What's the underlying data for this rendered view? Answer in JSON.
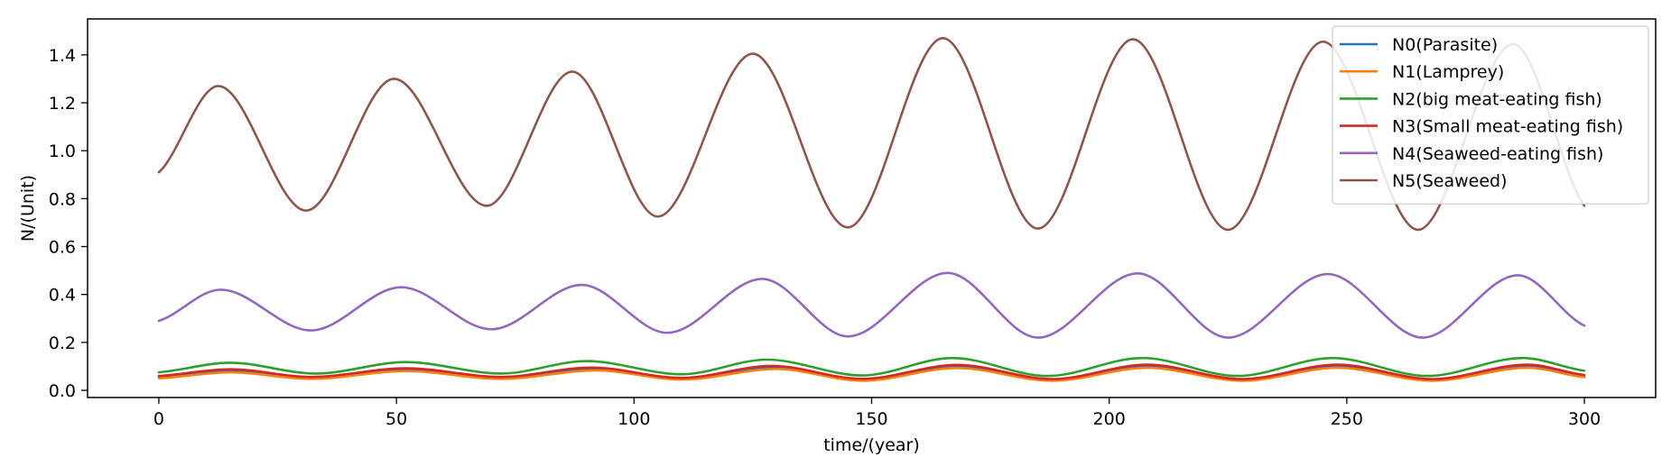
{
  "chart_data": {
    "type": "line",
    "xlabel": "time/(year)",
    "ylabel": "N/(Unit)",
    "xlim": [
      -15,
      315
    ],
    "ylim": [
      -0.03,
      1.55
    ],
    "xticks": [
      0,
      50,
      100,
      150,
      200,
      250,
      300
    ],
    "yticks": [
      0.0,
      0.2,
      0.4,
      0.6,
      0.8,
      1.0,
      1.2,
      1.4
    ],
    "ytick_labels": [
      "0.0",
      "0.2",
      "0.4",
      "0.6",
      "0.8",
      "1.0",
      "1.2",
      "1.4"
    ],
    "grid": false,
    "legend_position": "top-right",
    "series": [
      {
        "name": "N0(Parasite)",
        "color": "#1f77b4",
        "x": [
          0,
          15,
          32,
          52,
          72,
          92,
          110,
          130,
          148,
          168,
          188,
          208,
          228,
          248,
          268,
          288,
          300
        ],
        "y": [
          0.055,
          0.08,
          0.052,
          0.085,
          0.052,
          0.088,
          0.048,
          0.094,
          0.044,
          0.098,
          0.043,
          0.099,
          0.043,
          0.099,
          0.043,
          0.099,
          0.058
        ]
      },
      {
        "name": "N1(Lamprey)",
        "color": "#ff7f0e",
        "x": [
          0,
          15,
          32,
          52,
          72,
          92,
          110,
          130,
          148,
          168,
          188,
          208,
          228,
          248,
          268,
          288,
          300
        ],
        "y": [
          0.05,
          0.075,
          0.048,
          0.08,
          0.048,
          0.083,
          0.045,
          0.089,
          0.04,
          0.093,
          0.04,
          0.094,
          0.04,
          0.094,
          0.04,
          0.094,
          0.055
        ]
      },
      {
        "name": "N2(big meat-eating fish)",
        "color": "#2ca02c",
        "x": [
          0,
          15,
          33,
          52,
          72,
          90,
          110,
          128,
          148,
          167,
          187,
          207,
          227,
          247,
          267,
          287,
          300
        ],
        "y": [
          0.075,
          0.115,
          0.07,
          0.118,
          0.07,
          0.122,
          0.067,
          0.128,
          0.062,
          0.135,
          0.06,
          0.135,
          0.06,
          0.135,
          0.06,
          0.135,
          0.082
        ]
      },
      {
        "name": "N3(Small meat-eating fish)",
        "color": "#d62728",
        "x": [
          0,
          15,
          32,
          52,
          72,
          91,
          110,
          129,
          148,
          168,
          188,
          208,
          228,
          248,
          268,
          288,
          300
        ],
        "y": [
          0.06,
          0.088,
          0.056,
          0.092,
          0.056,
          0.095,
          0.052,
          0.102,
          0.048,
          0.106,
          0.047,
          0.107,
          0.047,
          0.107,
          0.047,
          0.107,
          0.064
        ]
      },
      {
        "name": "N4(Seaweed-eating fish)",
        "color": "#9467bd",
        "x": [
          0,
          13,
          32,
          51,
          70,
          89,
          107,
          127,
          145,
          166,
          185,
          206,
          225,
          246,
          266,
          286,
          300
        ],
        "y": [
          0.29,
          0.42,
          0.25,
          0.43,
          0.255,
          0.44,
          0.24,
          0.465,
          0.225,
          0.49,
          0.22,
          0.488,
          0.22,
          0.485,
          0.22,
          0.48,
          0.27
        ]
      },
      {
        "name": "N5(Seaweed)",
        "color": "#8c564b",
        "x": [
          0,
          12.5,
          31,
          49.5,
          69,
          87,
          105,
          125,
          145,
          165,
          185,
          205,
          225,
          245,
          265,
          285,
          300
        ],
        "y": [
          0.91,
          1.27,
          0.75,
          1.3,
          0.77,
          1.33,
          0.725,
          1.405,
          0.68,
          1.47,
          0.675,
          1.465,
          0.67,
          1.455,
          0.67,
          1.445,
          0.77
        ]
      }
    ]
  }
}
